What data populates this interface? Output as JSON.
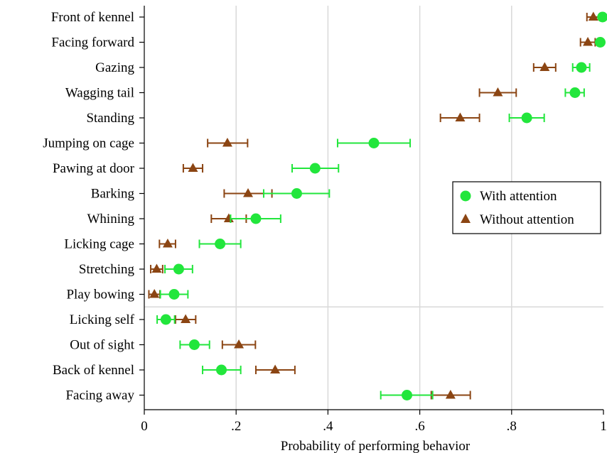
{
  "chart_data": {
    "type": "scatter",
    "xlabel": "Probability of performing behavior",
    "xlim": [
      0,
      1
    ],
    "x_ticks": [
      {
        "value": 0,
        "label": "0"
      },
      {
        "value": 0.2,
        "label": ".2"
      },
      {
        "value": 0.4,
        "label": ".4"
      },
      {
        "value": 0.6,
        "label": ".6"
      },
      {
        "value": 0.8,
        "label": ".8"
      },
      {
        "value": 1,
        "label": "1"
      }
    ],
    "grid": true,
    "legend_position": "right",
    "categories": [
      "Front of kennel",
      "Facing forward",
      "Gazing",
      "Wagging tail",
      "Standing",
      "Jumping on cage",
      "Pawing at door",
      "Barking",
      "Whining",
      "Licking cage",
      "Stretching",
      "Play bowing",
      "Licking self",
      "Out of sight",
      "Back of kennel",
      "Facing away"
    ],
    "group_separator_after_index": 11,
    "series": [
      {
        "name": "With attention",
        "color": "#22e63c",
        "marker": "circle",
        "values": [
          0.998,
          0.993,
          0.952,
          0.938,
          0.833,
          0.5,
          0.372,
          0.332,
          0.243,
          0.165,
          0.075,
          0.065,
          0.047,
          0.109,
          0.168,
          0.572
        ],
        "ci_low": [
          0.996,
          0.988,
          0.933,
          0.917,
          0.795,
          0.421,
          0.322,
          0.26,
          0.188,
          0.12,
          0.045,
          0.035,
          0.028,
          0.078,
          0.127,
          0.515
        ],
        "ci_high": [
          1.0,
          0.998,
          0.97,
          0.958,
          0.871,
          0.579,
          0.423,
          0.403,
          0.297,
          0.21,
          0.105,
          0.095,
          0.066,
          0.142,
          0.21,
          0.628
        ]
      },
      {
        "name": "Without attention",
        "color": "#8b4513",
        "marker": "triangle",
        "values": [
          0.978,
          0.966,
          0.872,
          0.77,
          0.688,
          0.181,
          0.106,
          0.226,
          0.184,
          0.051,
          0.027,
          0.022,
          0.09,
          0.206,
          0.285,
          0.667
        ],
        "ci_low": [
          0.964,
          0.95,
          0.848,
          0.73,
          0.645,
          0.138,
          0.085,
          0.174,
          0.146,
          0.033,
          0.014,
          0.01,
          0.068,
          0.17,
          0.243,
          0.625
        ],
        "ci_high": [
          0.992,
          0.982,
          0.896,
          0.81,
          0.73,
          0.225,
          0.127,
          0.278,
          0.222,
          0.068,
          0.04,
          0.034,
          0.112,
          0.242,
          0.328,
          0.71
        ]
      }
    ]
  }
}
